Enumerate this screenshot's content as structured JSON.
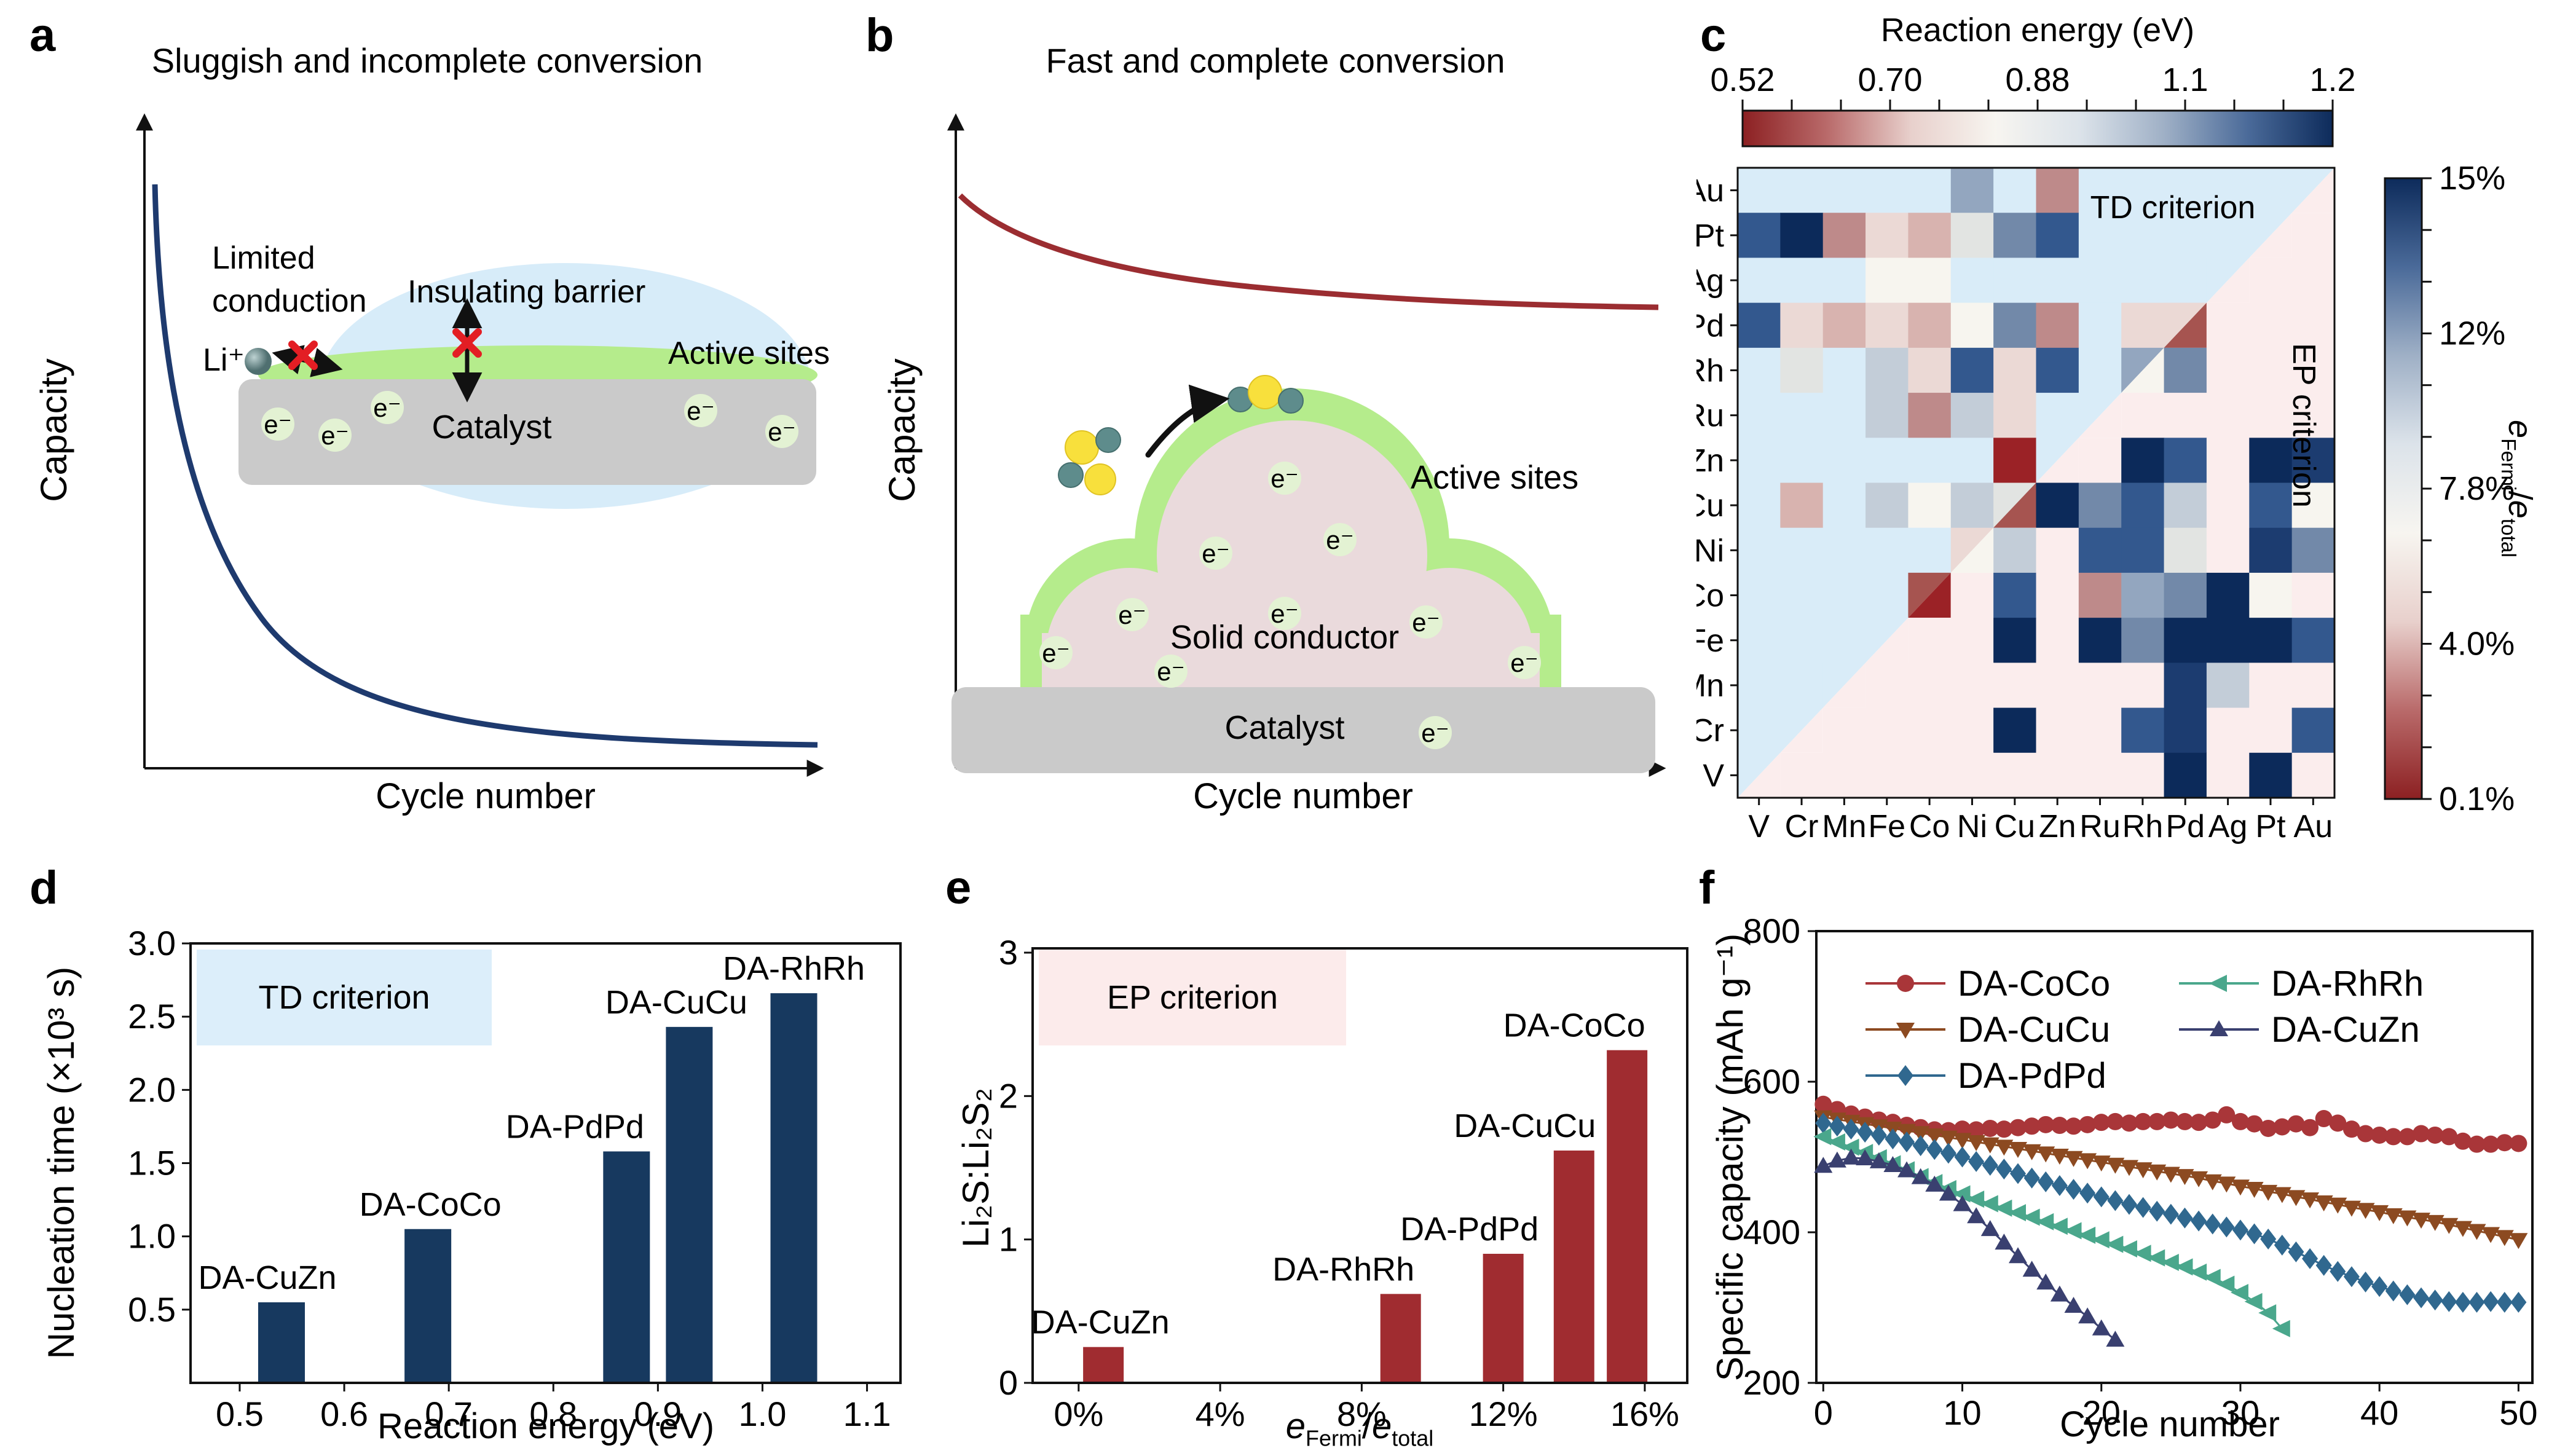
{
  "figure": {
    "background": "#FFFFFF"
  },
  "panels": {
    "a": {
      "letter": "a",
      "title": "Sluggish and incomplete conversion",
      "xlabel": "Cycle number",
      "ylabel": "Capacity",
      "curve_color": "#1E3A6E",
      "inset": {
        "limited_conduction_line1": "Limited",
        "limited_conduction_line2": "conduction",
        "insulating_barrier": "Insulating barrier",
        "li_ion": "Li⁺",
        "active_sites": "Active sites",
        "catalyst": "Catalyst",
        "electron": "e⁻"
      }
    },
    "b": {
      "letter": "b",
      "title": "Fast and complete conversion",
      "xlabel": "Cycle number",
      "ylabel": "Capacity",
      "curve_color": "#9B2D31",
      "inset": {
        "active_sites": "Active sites",
        "solid_conductor": "Solid conductor",
        "catalyst": "Catalyst",
        "electron": "e⁻"
      }
    },
    "c": {
      "letter": "c"
    },
    "d": {
      "letter": "d"
    },
    "e": {
      "letter": "e"
    },
    "f": {
      "letter": "f"
    }
  },
  "chart_data": [
    {
      "id": "c",
      "type": "heatmap",
      "top_colorbar": {
        "title": "Reaction energy (eV)",
        "tick_labels": [
          "0.52",
          "0.70",
          "0.88",
          "1.1",
          "1.2"
        ],
        "gradient": [
          "#8C2022",
          "#B96A6A",
          "#E8D0CC",
          "#F7F5F0",
          "#DCE3EA",
          "#9FB0C6",
          "#4A6A99",
          "#0D2B5B"
        ]
      },
      "right_colorbar": {
        "tick_labels": [
          "15%",
          "12%",
          "7.8%",
          "4.0%",
          "0.1%"
        ],
        "label_parts": {
          "e1": "e",
          "sub1": "Fermi",
          "sep": "/",
          "e2": "e",
          "sub2": "total"
        }
      },
      "region_labels": {
        "td": "TD criterion",
        "ep": "EP criterion"
      },
      "x_categories": [
        "V",
        "Cr",
        "Mn",
        "Fe",
        "Co",
        "Ni",
        "Cu",
        "Zn",
        "Ru",
        "Rh",
        "Pd",
        "Ag",
        "Pt",
        "Au"
      ],
      "y_categories": [
        "Au",
        "Pt",
        "Ag",
        "Pd",
        "Rh",
        "Ru",
        "Zn",
        "Cu",
        "Ni",
        "Co",
        "Fe",
        "Mn",
        "Cr",
        "V"
      ],
      "palette": {
        "TB": "#D9ECF8",
        "EB": "#FBEDED",
        "N3": "#0C2A5A",
        "N2": "#1C3C70",
        "N1": "#33588E",
        "SL": "#7289A9",
        "SL2": "#93A6BF",
        "GB": "#C3CDD8",
        "GN": "#E2E4E2",
        "WW": "#F7F5EF",
        "P1": "#EBD9D5",
        "P2": "#D8B3AF",
        "R1": "#BE8A8A",
        "R2": "#A65450",
        "R3": "#9B2226"
      },
      "cells": [
        "TB TB TB TB TB SL2 TB R1 TB TB TB TB TB TB/EB",
        "N1 N3 R1 P1 P2 GN SL N1 TB TB TB TB TB/EB EB",
        "TB TB TB WW WW TB TB TB TB TB TB TB/EB EB EB",
        "N1 P1 P2 P1 P2 WW SL R1 TB P1 P1/R2 EB EB EB",
        "TB GN TB GB P1 N1 P1 N1 TB SL2/WW SL EB EB EB",
        "TB TB TB GB R1 GB P1 TB TB/EB EB EB EB EB EB",
        "TB TB TB TB TB TB R3 TB/EB EB N3 N1 EB N3 N2",
        "TB P2 TB GB WW GB GN/R2 N3 SL N1 GB EB N1 WW",
        "TB TB TB TB TB P1/WW GB EB N1 N1 GN EB N2 SL",
        "TB TB TB TB R2/R3 EB N1 EB R1 SL2 SL N3 WW EB",
        "TB TB TB TB/EB EB EB N3 EB N3 SL N3 N3 N3 N1",
        "TB TB TB/EB EB EB EB EB EB EB EB N2 GB EB EB",
        "TB TB/EB EB EB EB EB N3 EB EB N1 N2 EB EB N1",
        "TB/EB EB EB EB EB EB EB EB EB EB N3 EB N3 EB"
      ]
    },
    {
      "id": "d",
      "type": "bar",
      "criterion": "TD criterion",
      "criterion_bg": "#DCEEFA",
      "color": "#17395F",
      "xlabel": "Reaction energy (eV)",
      "ylabel": "Nucleation time (×10³ s)",
      "xticks": [
        0.5,
        0.6,
        0.7,
        0.8,
        0.9,
        1.0,
        1.1
      ],
      "xtick_labels": [
        "0.5",
        "0.6",
        "0.7",
        "0.8",
        "0.9",
        "1.0",
        "1.1"
      ],
      "yticks": [
        0.5,
        1.0,
        1.5,
        2.0,
        2.5,
        3.0
      ],
      "ytick_labels": [
        "0.5",
        "1.0",
        "1.5",
        "2.0",
        "2.5",
        "3.0"
      ],
      "xlim": [
        0.453,
        1.132
      ],
      "ylim": [
        0,
        3.0
      ],
      "bar_width_ev": 0.045,
      "bars": [
        {
          "label": "DA-CuZn",
          "x": 0.54,
          "value": 0.55,
          "label_dx": -23
        },
        {
          "label": "DA-CoCo",
          "x": 0.68,
          "value": 1.05,
          "label_dx": 4
        },
        {
          "label": "DA-PdPd",
          "x": 0.87,
          "value": 1.58,
          "label_dx": -84
        },
        {
          "label": "DA-CuCu",
          "x": 0.93,
          "value": 2.43,
          "label_dx": -21
        },
        {
          "label": "DA-RhRh",
          "x": 1.03,
          "value": 2.66,
          "label_dx": 0
        }
      ]
    },
    {
      "id": "e",
      "type": "bar",
      "criterion": "EP criterion",
      "criterion_bg": "#FCEBEB",
      "color": "#A02C30",
      "xlabel_parts": {
        "e1": "e",
        "sub1": "Fermi",
        "sep": "/",
        "e2": "e",
        "sub2": "total"
      },
      "ylabel": "Li₂S:Li₂S₂",
      "xticks": [
        0,
        4,
        8,
        12,
        16
      ],
      "xtick_labels": [
        "0%",
        "4%",
        "8%",
        "12%",
        "16%"
      ],
      "yticks": [
        0,
        1,
        2,
        3
      ],
      "ytick_labels": [
        "0",
        "1",
        "2",
        "3"
      ],
      "xlim": [
        -1.3,
        17.2
      ],
      "ylim": [
        0,
        3.03
      ],
      "bar_width_pct": 1.15,
      "bars": [
        {
          "label": "DA-CuZn",
          "x": 0.7,
          "value": 0.25,
          "label_dx": -5
        },
        {
          "label": "DA-RhRh",
          "x": 9.1,
          "value": 0.62,
          "label_dx": -93
        },
        {
          "label": "DA-PdPd",
          "x": 12.0,
          "value": 0.9,
          "label_dx": -55
        },
        {
          "label": "DA-CuCu",
          "x": 14.0,
          "value": 1.62,
          "label_dx": -80
        },
        {
          "label": "DA-CoCo",
          "x": 15.5,
          "value": 2.32,
          "label_dx": -86
        }
      ]
    },
    {
      "id": "f",
      "type": "line",
      "xlabel": "Cycle number",
      "ylabel": "Specific capacity (mAh g⁻¹)",
      "xticks": [
        0,
        10,
        20,
        30,
        40,
        50
      ],
      "yticks": [
        200,
        400,
        600,
        800
      ],
      "xlim": [
        -0.5,
        51
      ],
      "ylim": [
        200,
        800
      ],
      "legend_rows": [
        [
          "DA-CoCo",
          "DA-RhRh"
        ],
        [
          "DA-CuCu",
          "DA-CuZn"
        ],
        [
          "DA-PdPd"
        ]
      ],
      "series": [
        {
          "name": "DA-CoCo",
          "color": "#A93639",
          "marker": "circle",
          "y": [
            570,
            563,
            557,
            553,
            549,
            546,
            542,
            539,
            536,
            535,
            537,
            536,
            538,
            537,
            539,
            541,
            543,
            542,
            541,
            543,
            546,
            547,
            545,
            547,
            547,
            549,
            547,
            546,
            549,
            556,
            547,
            544,
            538,
            540,
            544,
            539,
            551,
            545,
            537,
            531,
            529,
            527,
            527,
            531,
            529,
            527,
            521,
            517,
            517,
            519,
            518
          ]
        },
        {
          "name": "DA-CuCu",
          "color": "#8C4A21",
          "marker": "tri-down",
          "y": [
            553,
            550,
            547,
            544,
            541,
            538,
            535,
            532,
            529,
            526,
            523,
            520,
            517,
            514,
            511,
            508,
            505,
            502,
            499,
            496,
            493,
            490,
            487,
            484,
            481,
            478,
            475,
            472,
            468,
            465,
            461,
            458,
            454,
            451,
            447,
            444,
            440,
            437,
            433,
            430,
            427,
            423,
            420,
            417,
            414,
            410,
            406,
            402,
            398,
            394,
            390
          ]
        },
        {
          "name": "DA-PdPd",
          "color": "#30688F",
          "marker": "diamond",
          "y": [
            545,
            541,
            537,
            533,
            529,
            524,
            520,
            515,
            510,
            505,
            500,
            494,
            489,
            484,
            478,
            472,
            467,
            462,
            457,
            452,
            447,
            442,
            437,
            433,
            428,
            424,
            419,
            415,
            411,
            407,
            403,
            398,
            391,
            383,
            374,
            365,
            356,
            348,
            341,
            334,
            328,
            322,
            317,
            313,
            310,
            308,
            307,
            307,
            308,
            307,
            307
          ]
        },
        {
          "name": "DA-RhRh",
          "color": "#4AA78C",
          "marker": "tri-left",
          "y": [
            527,
            520,
            513,
            506,
            499,
            491,
            483,
            474,
            466,
            458,
            451,
            444,
            438,
            432,
            426,
            420,
            414,
            408,
            402,
            396,
            390,
            384,
            378,
            372,
            366,
            360,
            354,
            347,
            340,
            331,
            320,
            308,
            293,
            272
          ]
        },
        {
          "name": "DA-CuZn",
          "color": "#3A4070",
          "marker": "tri-up",
          "y": [
            488,
            495,
            499,
            498,
            494,
            489,
            482,
            473,
            463,
            451,
            437,
            421,
            404,
            386,
            368,
            350,
            333,
            317,
            302,
            288,
            272,
            257
          ]
        }
      ]
    }
  ]
}
